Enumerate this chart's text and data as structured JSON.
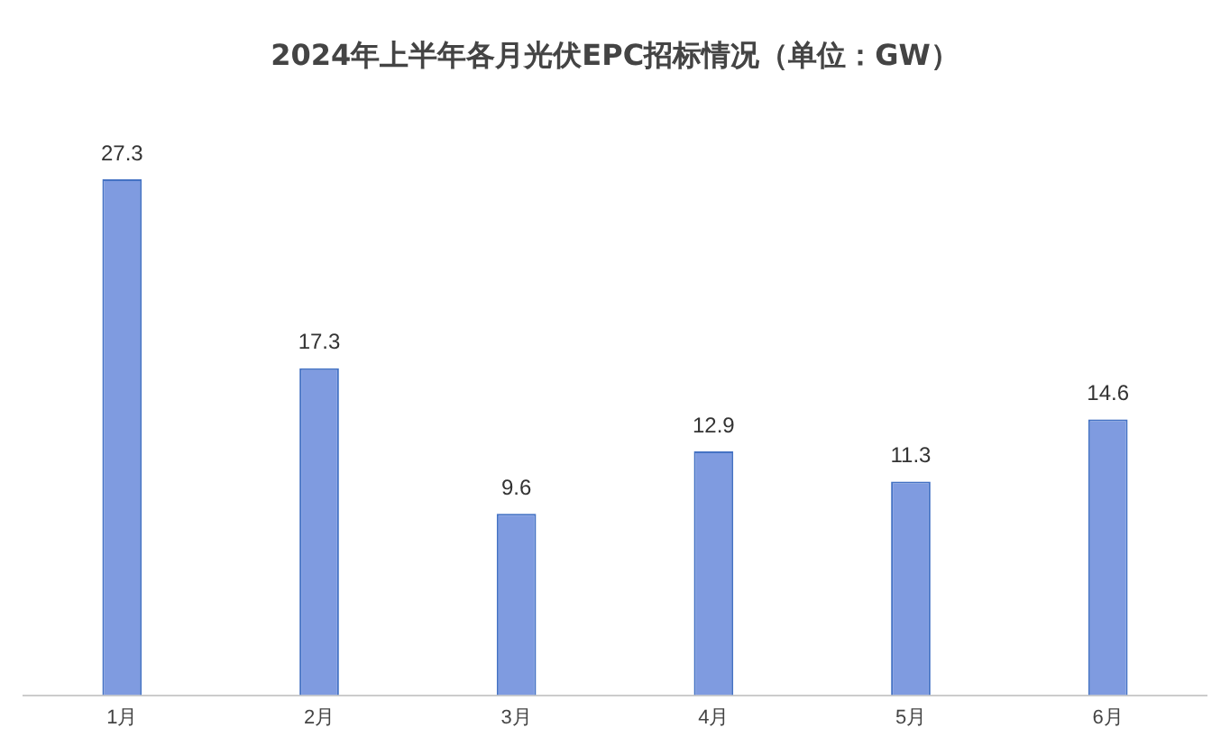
{
  "chart_data": {
    "type": "bar",
    "title": "2024年上半年各月光伏EPC招标情况（单位：GW）",
    "categories": [
      "1月",
      "2月",
      "3月",
      "4月",
      "5月",
      "6月"
    ],
    "values": [
      27.3,
      17.3,
      9.6,
      12.9,
      11.3,
      14.6
    ],
    "color": "#7f9be0",
    "data_labels": true,
    "grid": false,
    "legend": false
  }
}
